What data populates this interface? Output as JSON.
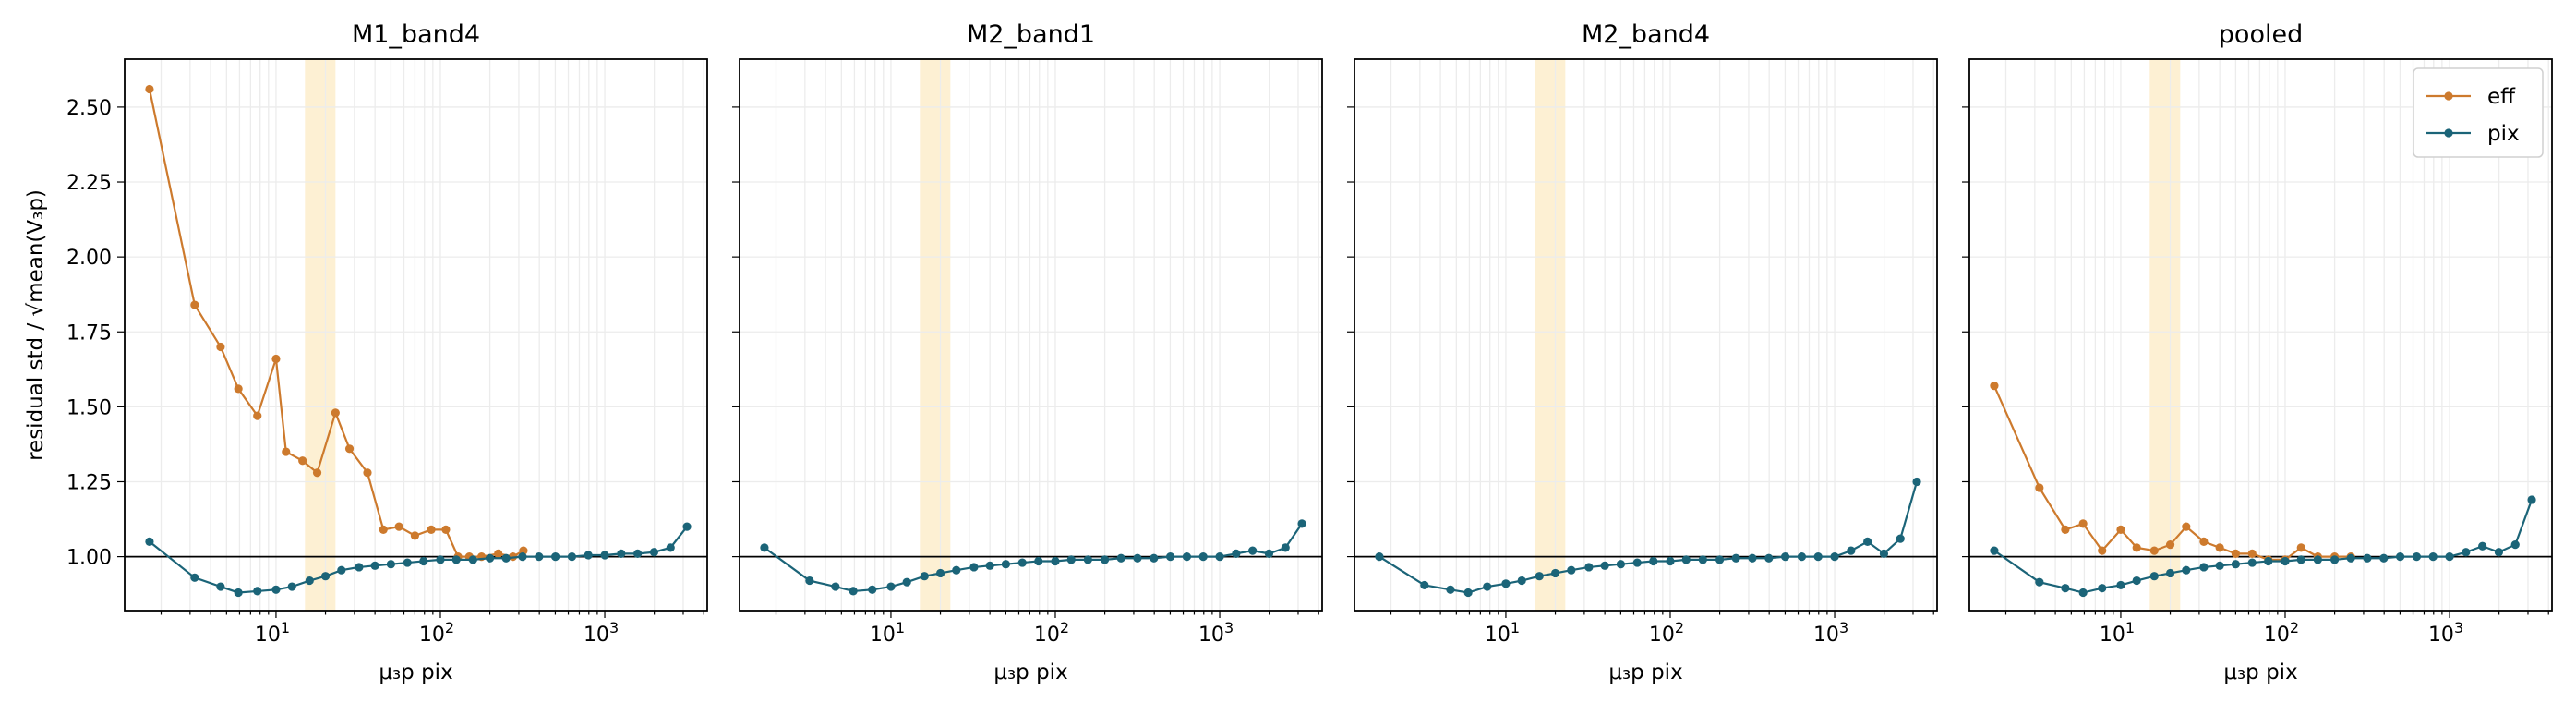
{
  "figure": {
    "ylabel": "residual std / √mean(V₃p)",
    "xlabel": "μ₃p pix"
  },
  "colors": {
    "eff": "#cd7a2d",
    "pix": "#1b6478",
    "band": "#fdf0d3",
    "grid": "#ececec",
    "refline": "#000000"
  },
  "chart_data": [
    {
      "type": "line",
      "title": "M1_band4",
      "xscale": "log",
      "xlim": [
        1.2,
        4200
      ],
      "ylim": [
        0.82,
        2.66
      ],
      "yticks": [
        1.0,
        1.25,
        1.5,
        1.75,
        2.0,
        2.25,
        2.5
      ],
      "ytick_labels": [
        "1.00",
        "1.25",
        "1.50",
        "1.75",
        "2.00",
        "2.25",
        "2.50"
      ],
      "xtick_labels": [
        "10^1",
        "10^2",
        "10^3"
      ],
      "shaded_x_range": [
        15,
        23
      ],
      "hline": 1.0,
      "series": [
        {
          "name": "eff",
          "color": "eff",
          "x": [
            1.7,
            3.2,
            4.6,
            5.9,
            7.7,
            10,
            11.5,
            14.5,
            17.8,
            23,
            28,
            36,
            45,
            56,
            70,
            88,
            108,
            128,
            150,
            178,
            225,
            276,
            320
          ],
          "y": [
            2.56,
            1.84,
            1.7,
            1.56,
            1.47,
            1.66,
            1.35,
            1.32,
            1.28,
            1.48,
            1.36,
            1.28,
            1.09,
            1.1,
            1.07,
            1.09,
            1.09,
            1.0,
            1.0,
            1.0,
            1.01,
            1.0,
            1.02
          ]
        },
        {
          "name": "pix",
          "color": "pix",
          "x": [
            1.7,
            3.2,
            4.6,
            5.9,
            7.7,
            10,
            12.5,
            16,
            20,
            25,
            32,
            40,
            50,
            63,
            79,
            100,
            125,
            158,
            200,
            251,
            316,
            398,
            501,
            631,
            794,
            1000,
            1259,
            1585,
            1995,
            2512,
            3162
          ],
          "y": [
            1.05,
            0.93,
            0.9,
            0.88,
            0.885,
            0.89,
            0.9,
            0.92,
            0.935,
            0.955,
            0.965,
            0.97,
            0.975,
            0.98,
            0.985,
            0.99,
            0.99,
            0.99,
            0.995,
            0.995,
            1.0,
            1.0,
            1.0,
            1.0,
            1.005,
            1.005,
            1.01,
            1.01,
            1.015,
            1.03,
            1.1
          ]
        }
      ]
    },
    {
      "type": "line",
      "title": "M2_band1",
      "xscale": "log",
      "xlim": [
        1.2,
        4200
      ],
      "ylim": [
        0.82,
        2.66
      ],
      "yticks": [
        1.0,
        1.25,
        1.5,
        1.75,
        2.0,
        2.25,
        2.5
      ],
      "ytick_labels": [
        "",
        "",
        "",
        "",
        "",
        "",
        ""
      ],
      "xtick_labels": [
        "10^1",
        "10^2",
        "10^3"
      ],
      "shaded_x_range": [
        15,
        23
      ],
      "hline": 1.0,
      "series": [
        {
          "name": "pix",
          "color": "pix",
          "x": [
            1.7,
            3.2,
            4.6,
            5.9,
            7.7,
            10,
            12.5,
            16,
            20,
            25,
            32,
            40,
            50,
            63,
            79,
            100,
            125,
            158,
            200,
            251,
            316,
            398,
            501,
            631,
            794,
            1000,
            1259,
            1585,
            1995,
            2512,
            3162
          ],
          "y": [
            1.03,
            0.92,
            0.9,
            0.885,
            0.89,
            0.9,
            0.915,
            0.935,
            0.945,
            0.955,
            0.965,
            0.97,
            0.975,
            0.98,
            0.985,
            0.985,
            0.99,
            0.99,
            0.99,
            0.995,
            0.995,
            0.995,
            1.0,
            1.0,
            1.0,
            1.0,
            1.01,
            1.02,
            1.01,
            1.03,
            1.11
          ]
        }
      ]
    },
    {
      "type": "line",
      "title": "M2_band4",
      "xscale": "log",
      "xlim": [
        1.2,
        4200
      ],
      "ylim": [
        0.82,
        2.66
      ],
      "yticks": [
        1.0,
        1.25,
        1.5,
        1.75,
        2.0,
        2.25,
        2.5
      ],
      "ytick_labels": [
        "",
        "",
        "",
        "",
        "",
        "",
        ""
      ],
      "xtick_labels": [
        "10^1",
        "10^2",
        "10^3"
      ],
      "shaded_x_range": [
        15,
        23
      ],
      "hline": 1.0,
      "series": [
        {
          "name": "pix",
          "color": "pix",
          "x": [
            1.7,
            3.2,
            4.6,
            5.9,
            7.7,
            10,
            12.5,
            16,
            20,
            25,
            32,
            40,
            50,
            63,
            79,
            100,
            125,
            158,
            200,
            251,
            316,
            398,
            501,
            631,
            794,
            1000,
            1259,
            1585,
            1995,
            2512,
            3162
          ],
          "y": [
            1.0,
            0.905,
            0.89,
            0.88,
            0.9,
            0.91,
            0.92,
            0.935,
            0.945,
            0.955,
            0.965,
            0.97,
            0.975,
            0.98,
            0.985,
            0.985,
            0.99,
            0.99,
            0.99,
            0.995,
            0.995,
            0.995,
            1.0,
            1.0,
            1.0,
            1.0,
            1.02,
            1.05,
            1.01,
            1.06,
            1.25
          ]
        }
      ]
    },
    {
      "type": "line",
      "title": "pooled",
      "xscale": "log",
      "xlim": [
        1.2,
        4200
      ],
      "ylim": [
        0.82,
        2.66
      ],
      "yticks": [
        1.0,
        1.25,
        1.5,
        1.75,
        2.0,
        2.25,
        2.5
      ],
      "ytick_labels": [
        "",
        "",
        "",
        "",
        "",
        "",
        ""
      ],
      "xtick_labels": [
        "10^1",
        "10^2",
        "10^3"
      ],
      "shaded_x_range": [
        15,
        23
      ],
      "hline": 1.0,
      "legend": {
        "placement": "top-right",
        "entries": [
          "eff",
          "pix"
        ]
      },
      "series": [
        {
          "name": "eff",
          "color": "eff",
          "x": [
            1.7,
            3.2,
            4.6,
            5.9,
            7.7,
            10,
            12.5,
            16,
            20,
            25,
            32,
            40,
            50,
            63,
            79,
            100,
            125,
            158,
            200,
            251
          ],
          "y": [
            1.57,
            1.23,
            1.09,
            1.11,
            1.02,
            1.09,
            1.03,
            1.02,
            1.04,
            1.1,
            1.05,
            1.03,
            1.01,
            1.01,
            0.99,
            0.99,
            1.03,
            1.0,
            1.0,
            1.0
          ]
        },
        {
          "name": "pix",
          "color": "pix",
          "x": [
            1.7,
            3.2,
            4.6,
            5.9,
            7.7,
            10,
            12.5,
            16,
            20,
            25,
            32,
            40,
            50,
            63,
            79,
            100,
            125,
            158,
            200,
            251,
            316,
            398,
            501,
            631,
            794,
            1000,
            1259,
            1585,
            1995,
            2512,
            3162
          ],
          "y": [
            1.02,
            0.915,
            0.895,
            0.88,
            0.895,
            0.905,
            0.92,
            0.935,
            0.945,
            0.955,
            0.965,
            0.97,
            0.975,
            0.98,
            0.985,
            0.985,
            0.99,
            0.99,
            0.99,
            0.995,
            0.995,
            0.995,
            1.0,
            1.0,
            1.0,
            1.0,
            1.015,
            1.035,
            1.015,
            1.04,
            1.19
          ]
        }
      ]
    }
  ]
}
